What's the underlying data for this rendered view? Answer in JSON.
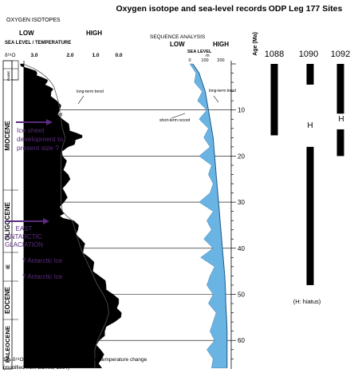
{
  "title_left": "Oxygen isotope and sea-level records",
  "title_right": "ODP Leg 177 Sites",
  "oxygen": {
    "header": "OXYGEN ISOTOPES",
    "low": "LOW",
    "high": "HIGH",
    "axis_label": "SEA LEVEL / TEMPERATURE",
    "d18o_label": "δ¹⁸O",
    "ticks": [
      "3.0",
      "2.0",
      "1.0",
      "0.0"
    ],
    "long_term": "long-term trend",
    "short_term": "short-term record"
  },
  "sequence": {
    "header": "SEQUENCE ANALYSIS",
    "low": "LOW",
    "high": "HIGH",
    "sea_level": "SEA LEVEL",
    "unit": "m",
    "ticks": [
      "0",
      "100",
      "200"
    ],
    "long_term": "long-term trend",
    "short_term": "short-term record"
  },
  "age_axis": {
    "label": "Age (Ma)",
    "ticks": [
      "10",
      "20",
      "30",
      "40",
      "50",
      "60"
    ]
  },
  "epochs": {
    "miocene": "MIOCENE",
    "oligocene": "OLIGOCENE",
    "eocene": "EOCENE",
    "paleocene": "PALEOCENE",
    "late_eocene_abbr": "IE",
    "quaternary": "PLEIST",
    "pliocene": "PLIOC"
  },
  "annotations": {
    "ice_sheet": [
      "Ice sheet",
      "development to",
      "present size ?"
    ],
    "east_ant": [
      "EAST",
      "ANTARCTIC",
      "GLACIATION"
    ],
    "ant_ice_1": "? Antarctic Ice",
    "ant_ice_2": "? Antarctic Ice"
  },
  "sites": [
    {
      "name": "1088",
      "intervals": [
        [
          0,
          15.5
        ]
      ]
    },
    {
      "name": "1090",
      "intervals": [
        [
          0,
          4.5
        ],
        [
          18,
          48
        ]
      ],
      "hiatus_label": "H"
    },
    {
      "name": "1092",
      "intervals": [
        [
          0,
          10.8
        ],
        [
          14.2,
          20
        ]
      ],
      "hiatus_label": "H"
    }
  ],
  "hiatus_note": "(H: hiatus)",
  "footer": [
    "1‰ δ¹⁸O = 110 m sea-level or 4°C water - temperature change",
    "(modified from Barrett, 1994)"
  ],
  "colors": {
    "oxygen_fill": "#000000",
    "sea_level_fill": "#6ab4e4",
    "annotation": "#5a2a7e",
    "site_bar": "#000000"
  },
  "chart_data": {
    "type": "area",
    "age_range_ma": [
      0,
      66
    ],
    "oxygen_isotope_axis": [
      3.5,
      -0.5
    ],
    "sea_level_axis_m": [
      -50,
      250
    ],
    "oxygen_isotope": {
      "age": [
        0,
        1,
        2,
        3,
        4,
        5,
        6,
        8,
        10,
        12,
        14,
        15,
        16,
        17,
        18,
        20,
        22,
        24,
        26,
        28,
        30,
        32,
        33,
        34,
        36,
        38,
        40,
        42,
        44,
        46,
        48,
        50,
        52,
        54,
        56,
        58,
        60,
        62,
        64,
        66
      ],
      "short_term": [
        3.5,
        3.2,
        2.9,
        2.7,
        2.55,
        2.45,
        2.4,
        2.2,
        2.1,
        2.0,
        1.75,
        1.5,
        1.3,
        1.55,
        1.8,
        2.0,
        1.9,
        1.8,
        1.85,
        1.9,
        1.95,
        2.0,
        2.1,
        1.6,
        1.45,
        1.35,
        1.25,
        1.05,
        0.9,
        0.7,
        0.45,
        0.2,
        0.0,
        -0.1,
        0.15,
        0.5,
        0.7,
        0.65,
        0.6,
        0.6
      ],
      "long_term": [
        3.4,
        3.0,
        2.75,
        2.55,
        2.4,
        2.3,
        2.25,
        2.15,
        2.1,
        2.05,
        2.0,
        1.95,
        1.9,
        1.95,
        2.0,
        2.05,
        2.05,
        2.05,
        2.05,
        2.05,
        2.05,
        2.0,
        1.85,
        1.65,
        1.55,
        1.45,
        1.35,
        1.2,
        1.05,
        0.9,
        0.75,
        0.55,
        0.4,
        0.35,
        0.45,
        0.6,
        0.75,
        0.85,
        0.85,
        0.85
      ]
    },
    "sea_level": {
      "age": [
        0,
        2,
        4,
        6,
        8,
        10,
        12,
        14,
        16,
        18,
        20,
        22,
        24,
        26,
        28,
        30,
        32,
        34,
        36,
        38,
        40,
        42,
        44,
        46,
        48,
        50,
        52,
        54,
        56,
        58,
        60,
        62,
        64,
        66
      ],
      "short_term": [
        0,
        40,
        30,
        80,
        50,
        110,
        60,
        120,
        90,
        130,
        60,
        140,
        120,
        150,
        130,
        60,
        150,
        110,
        140,
        90,
        150,
        70,
        160,
        130,
        110,
        150,
        120,
        170,
        150,
        130,
        160,
        110,
        150,
        140
      ],
      "long_term": [
        20,
        60,
        80,
        100,
        110,
        120,
        130,
        140,
        150,
        155,
        160,
        165,
        170,
        175,
        180,
        185,
        190,
        195,
        200,
        205,
        210,
        215,
        220,
        225,
        228,
        230,
        232,
        235,
        238,
        240,
        240,
        240,
        240,
        240
      ]
    }
  }
}
